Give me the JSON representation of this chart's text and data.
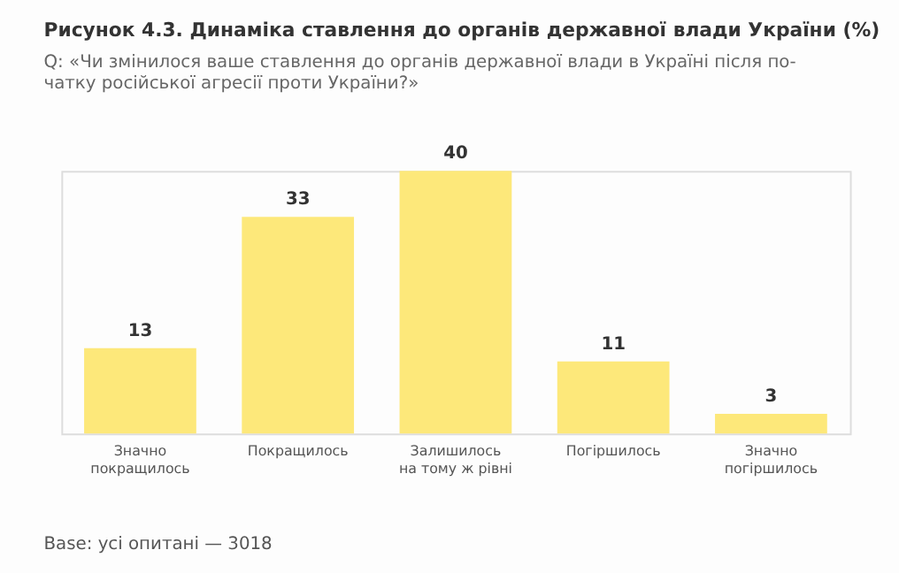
{
  "chart_data": {
    "type": "bar",
    "title": "Рисунок 4.3. Динаміка ставлення до органів державної влади України (%)",
    "subtitle": "Q: «Чи змінилося ваше ставлення до органів державної влади в Україні після по-\nчатку російської агресії проти України?»",
    "categories": [
      "Значно\nпокращилось",
      "Покращилось",
      "Залишилось\nна тому ж рівні",
      "Погіршилось",
      "Значно\nпогіршилось"
    ],
    "values": [
      13,
      33,
      40,
      11,
      3
    ],
    "color": "#fde87a",
    "data_labels": true,
    "annotations": [
      "Base: усі опитані — 3018"
    ]
  }
}
